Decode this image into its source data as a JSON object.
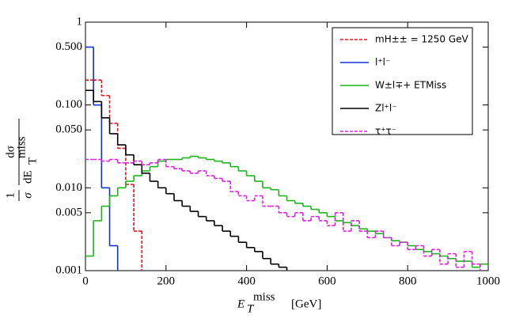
{
  "chart_data": {
    "type": "histogram",
    "log_y": true,
    "xlim": [
      0,
      1000
    ],
    "ylim": [
      0.001,
      1
    ],
    "xticks": [
      0,
      200,
      400,
      600,
      800,
      1000
    ],
    "yticks": [
      0.001,
      0.005,
      {
        "value": 0.01,
        "label": "0.010"
      },
      {
        "value": 0.05,
        "label": "0.050"
      },
      {
        "value": 0.1,
        "label": "0.100"
      },
      {
        "value": 0.5,
        "label": "0.500"
      },
      1
    ],
    "xlabel": {
      "main": "E",
      "sub": "T",
      "sup": "miss",
      "unit": "[GeV]"
    },
    "ylabel": {
      "one": "1",
      "sigma": "σ",
      "dsigma": "dσ",
      "dE": "dE",
      "sub": "T",
      "sup": "miss"
    },
    "legend": "upper right",
    "bins": [
      0,
      20,
      40,
      60,
      80,
      100,
      120,
      140,
      160,
      180,
      200,
      220,
      240,
      260,
      280,
      300,
      320,
      340,
      360,
      380,
      400,
      420,
      440,
      460,
      480,
      500,
      520,
      540,
      560,
      580,
      600,
      620,
      640,
      660,
      680,
      700,
      720,
      740,
      760,
      780,
      800,
      820,
      840,
      860,
      880,
      900,
      920,
      940,
      960,
      980,
      1000
    ],
    "series": [
      {
        "name": "mH±± = 1250 GeV",
        "color": "#e8141c",
        "dash": true,
        "values": [
          0.2,
          0.2,
          0.13,
          0.06,
          0.03,
          0.011,
          0.003,
          null,
          null,
          null,
          null,
          null,
          null,
          null,
          null,
          null,
          null,
          null,
          null,
          null,
          null,
          null,
          null,
          null,
          null,
          null,
          null,
          null,
          null,
          null,
          null,
          null,
          null,
          null,
          null,
          null,
          null,
          null,
          null,
          null,
          null,
          null,
          null,
          null,
          null,
          null,
          null,
          null,
          null,
          null
        ]
      },
      {
        "name": "l⁺l⁻",
        "color": "#1030d0",
        "dash": false,
        "values": [
          0.5,
          0.1,
          0.01,
          0.002,
          null,
          null,
          null,
          null,
          null,
          null,
          null,
          null,
          null,
          null,
          null,
          null,
          null,
          null,
          null,
          null,
          null,
          null,
          null,
          null,
          null,
          null,
          null,
          null,
          null,
          null,
          null,
          null,
          null,
          null,
          null,
          null,
          null,
          null,
          null,
          null,
          null,
          null,
          null,
          null,
          null,
          null,
          null,
          null,
          null,
          null
        ]
      },
      {
        "name": "W±l∓+ ETMiss",
        "color": "#1cb41c",
        "dash": false,
        "values": [
          0.0015,
          0.004,
          0.006,
          0.008,
          0.01,
          0.012,
          0.014,
          0.016,
          0.018,
          0.021,
          0.022,
          0.022,
          0.023,
          0.024,
          0.023,
          0.022,
          0.021,
          0.02,
          0.018,
          0.016,
          0.014,
          0.012,
          0.01,
          0.0095,
          0.008,
          0.007,
          0.0065,
          0.006,
          0.0055,
          0.005,
          0.0045,
          0.004,
          0.0038,
          0.0035,
          0.0032,
          0.003,
          0.0028,
          0.0025,
          0.0023,
          0.0022,
          0.002,
          0.0018,
          0.0017,
          0.0016,
          0.0015,
          0.0014,
          0.0013,
          0.0013,
          0.0011,
          0.0012
        ]
      },
      {
        "name": "Zl⁺l⁻",
        "color": "#000000",
        "dash": false,
        "values": [
          0.15,
          0.11,
          0.07,
          0.045,
          0.033,
          0.025,
          0.019,
          0.015,
          0.012,
          0.01,
          0.0085,
          0.007,
          0.006,
          0.0052,
          0.0045,
          0.004,
          0.0035,
          0.003,
          0.0026,
          0.0022,
          0.0019,
          0.0017,
          0.0014,
          0.0012,
          0.0011,
          null,
          null,
          null,
          null,
          null,
          null,
          null,
          null,
          null,
          null,
          null,
          null,
          null,
          null,
          null,
          null,
          null,
          null,
          null,
          null,
          null,
          null,
          null,
          null,
          null
        ]
      },
      {
        "name": "τ⁺τ⁻",
        "color": "#e020e0",
        "dash": true,
        "values": [
          0.022,
          0.022,
          0.021,
          0.022,
          0.02,
          0.02,
          0.021,
          0.019,
          0.02,
          0.022,
          0.018,
          0.017,
          0.016,
          0.015,
          0.016,
          0.014,
          0.013,
          0.012,
          0.009,
          0.008,
          0.007,
          0.008,
          0.006,
          0.006,
          0.005,
          0.0045,
          0.005,
          0.004,
          0.0045,
          0.004,
          0.0035,
          0.005,
          0.003,
          0.004,
          0.003,
          0.0025,
          0.003,
          0.0025,
          0.002,
          0.0022,
          0.0018,
          0.002,
          0.0015,
          0.0018,
          0.0012,
          0.0016,
          0.0011,
          0.0017,
          0.0012,
          null
        ]
      }
    ]
  }
}
